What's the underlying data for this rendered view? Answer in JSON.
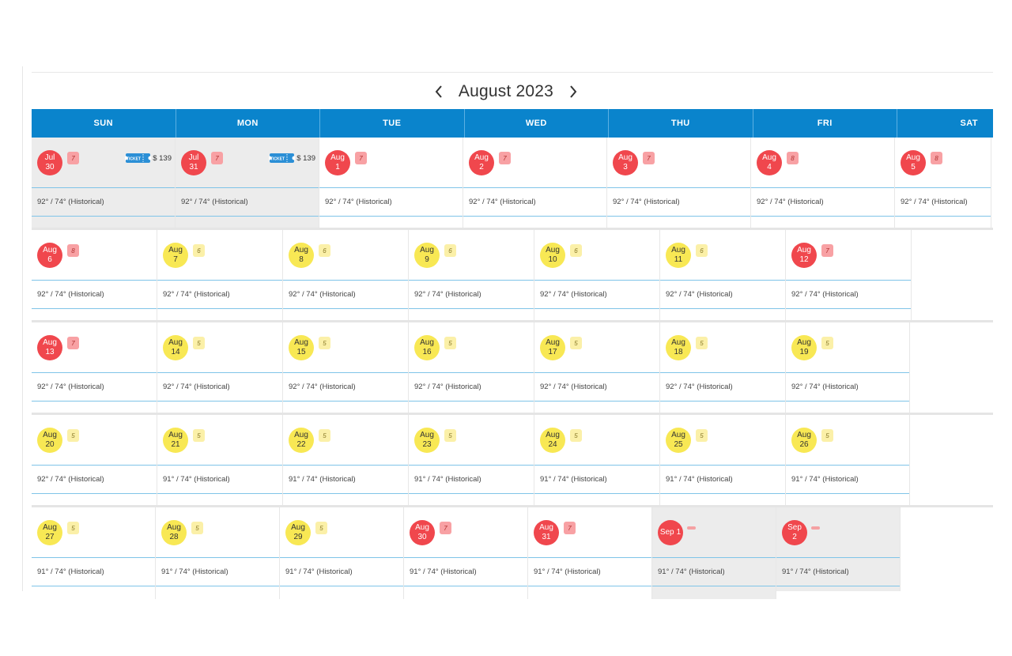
{
  "month_title": "August 2023",
  "weekdays": [
    "SUN",
    "MON",
    "TUE",
    "WED",
    "THU",
    "FRI",
    "SAT"
  ],
  "icons": {
    "prev": "chevron-left-icon",
    "next": "chevron-right-icon",
    "ticket": "ticket-icon"
  },
  "colors": {
    "header": "#0a84cc",
    "red_day": "#f0474d",
    "yellow_day": "#f8e854",
    "grey_cell": "#ececec"
  },
  "ticket_label": "TICKET",
  "weeks": [
    {
      "days": [
        {
          "month": "Jul",
          "day": "30",
          "status": "red",
          "count": "7",
          "temp": "92° / 74° (Historical)",
          "grey": true,
          "price": "$ 139"
        },
        {
          "month": "Jul",
          "day": "31",
          "status": "red",
          "count": "7",
          "temp": "92° / 74° (Historical)",
          "grey": true,
          "price": "$ 139"
        },
        {
          "month": "Aug",
          "day": "1",
          "status": "red",
          "count": "7",
          "temp": "92° / 74° (Historical)"
        },
        {
          "month": "Aug",
          "day": "2",
          "status": "red",
          "count": "7",
          "temp": "92° / 74° (Historical)"
        },
        {
          "month": "Aug",
          "day": "3",
          "status": "red",
          "count": "7",
          "temp": "92° / 74° (Historical)"
        },
        {
          "month": "Aug",
          "day": "4",
          "status": "red",
          "count": "8",
          "temp": "92° / 74° (Historical)"
        },
        {
          "month": "Aug",
          "day": "5",
          "status": "red",
          "count": "8",
          "temp": "92° / 74° (Historical)"
        }
      ]
    },
    {
      "days": [
        {
          "month": "Aug",
          "day": "6",
          "status": "red",
          "count": "8",
          "temp": "92° / 74° (Historical)"
        },
        {
          "month": "Aug",
          "day": "7",
          "status": "yellow",
          "count": "6",
          "temp": "92° / 74° (Historical)"
        },
        {
          "month": "Aug",
          "day": "8",
          "status": "yellow",
          "count": "6",
          "temp": "92° / 74° (Historical)"
        },
        {
          "month": "Aug",
          "day": "9",
          "status": "yellow",
          "count": "6",
          "temp": "92° / 74° (Historical)"
        },
        {
          "month": "Aug",
          "day": "10",
          "status": "yellow",
          "count": "6",
          "temp": "92° / 74° (Historical)"
        },
        {
          "month": "Aug",
          "day": "11",
          "status": "yellow",
          "count": "6",
          "temp": "92° / 74° (Historical)"
        },
        {
          "month": "Aug",
          "day": "12",
          "status": "red",
          "count": "7",
          "temp": "92° / 74° (Historical)"
        }
      ]
    },
    {
      "days": [
        {
          "month": "Aug",
          "day": "13",
          "status": "red",
          "count": "7",
          "temp": "92° / 74° (Historical)"
        },
        {
          "month": "Aug",
          "day": "14",
          "status": "yellow",
          "count": "5",
          "temp": "92° / 74° (Historical)"
        },
        {
          "month": "Aug",
          "day": "15",
          "status": "yellow",
          "count": "5",
          "temp": "92° / 74° (Historical)"
        },
        {
          "month": "Aug",
          "day": "16",
          "status": "yellow",
          "count": "5",
          "temp": "92° / 74° (Historical)"
        },
        {
          "month": "Aug",
          "day": "17",
          "status": "yellow",
          "count": "5",
          "temp": "92° / 74° (Historical)"
        },
        {
          "month": "Aug",
          "day": "18",
          "status": "yellow",
          "count": "5",
          "temp": "92° / 74° (Historical)"
        },
        {
          "month": "Aug",
          "day": "19",
          "status": "yellow",
          "count": "5",
          "temp": "92° / 74° (Historical)"
        }
      ]
    },
    {
      "days": [
        {
          "month": "Aug",
          "day": "20",
          "status": "yellow",
          "count": "5",
          "temp": "92° / 74° (Historical)"
        },
        {
          "month": "Aug",
          "day": "21",
          "status": "yellow",
          "count": "5",
          "temp": "91° / 74° (Historical)"
        },
        {
          "month": "Aug",
          "day": "22",
          "status": "yellow",
          "count": "5",
          "temp": "91° / 74° (Historical)"
        },
        {
          "month": "Aug",
          "day": "23",
          "status": "yellow",
          "count": "5",
          "temp": "91° / 74° (Historical)"
        },
        {
          "month": "Aug",
          "day": "24",
          "status": "yellow",
          "count": "5",
          "temp": "91° / 74° (Historical)"
        },
        {
          "month": "Aug",
          "day": "25",
          "status": "yellow",
          "count": "5",
          "temp": "91° / 74° (Historical)"
        },
        {
          "month": "Aug",
          "day": "26",
          "status": "yellow",
          "count": "5",
          "temp": "91° / 74° (Historical)"
        }
      ]
    },
    {
      "days": [
        {
          "month": "Aug",
          "day": "27",
          "status": "yellow",
          "count": "5",
          "temp": "91° / 74° (Historical)"
        },
        {
          "month": "Aug",
          "day": "28",
          "status": "yellow",
          "count": "5",
          "temp": "91° / 74° (Historical)"
        },
        {
          "month": "Aug",
          "day": "29",
          "status": "yellow",
          "count": "5",
          "temp": "91° / 74° (Historical)"
        },
        {
          "month": "Aug",
          "day": "30",
          "status": "red",
          "count": "7",
          "temp": "91° / 74° (Historical)"
        },
        {
          "month": "Aug",
          "day": "31",
          "status": "red",
          "count": "7",
          "temp": "91° / 74° (Historical)"
        },
        {
          "month": "Sep",
          "day": "1",
          "status": "red",
          "count": "",
          "inline": true,
          "temp": "91° / 74° (Historical)",
          "grey": true
        },
        {
          "month": "Sep",
          "day": "2",
          "status": "red",
          "count": "",
          "temp": "91° / 74° (Historical)",
          "grey": true
        }
      ]
    }
  ]
}
